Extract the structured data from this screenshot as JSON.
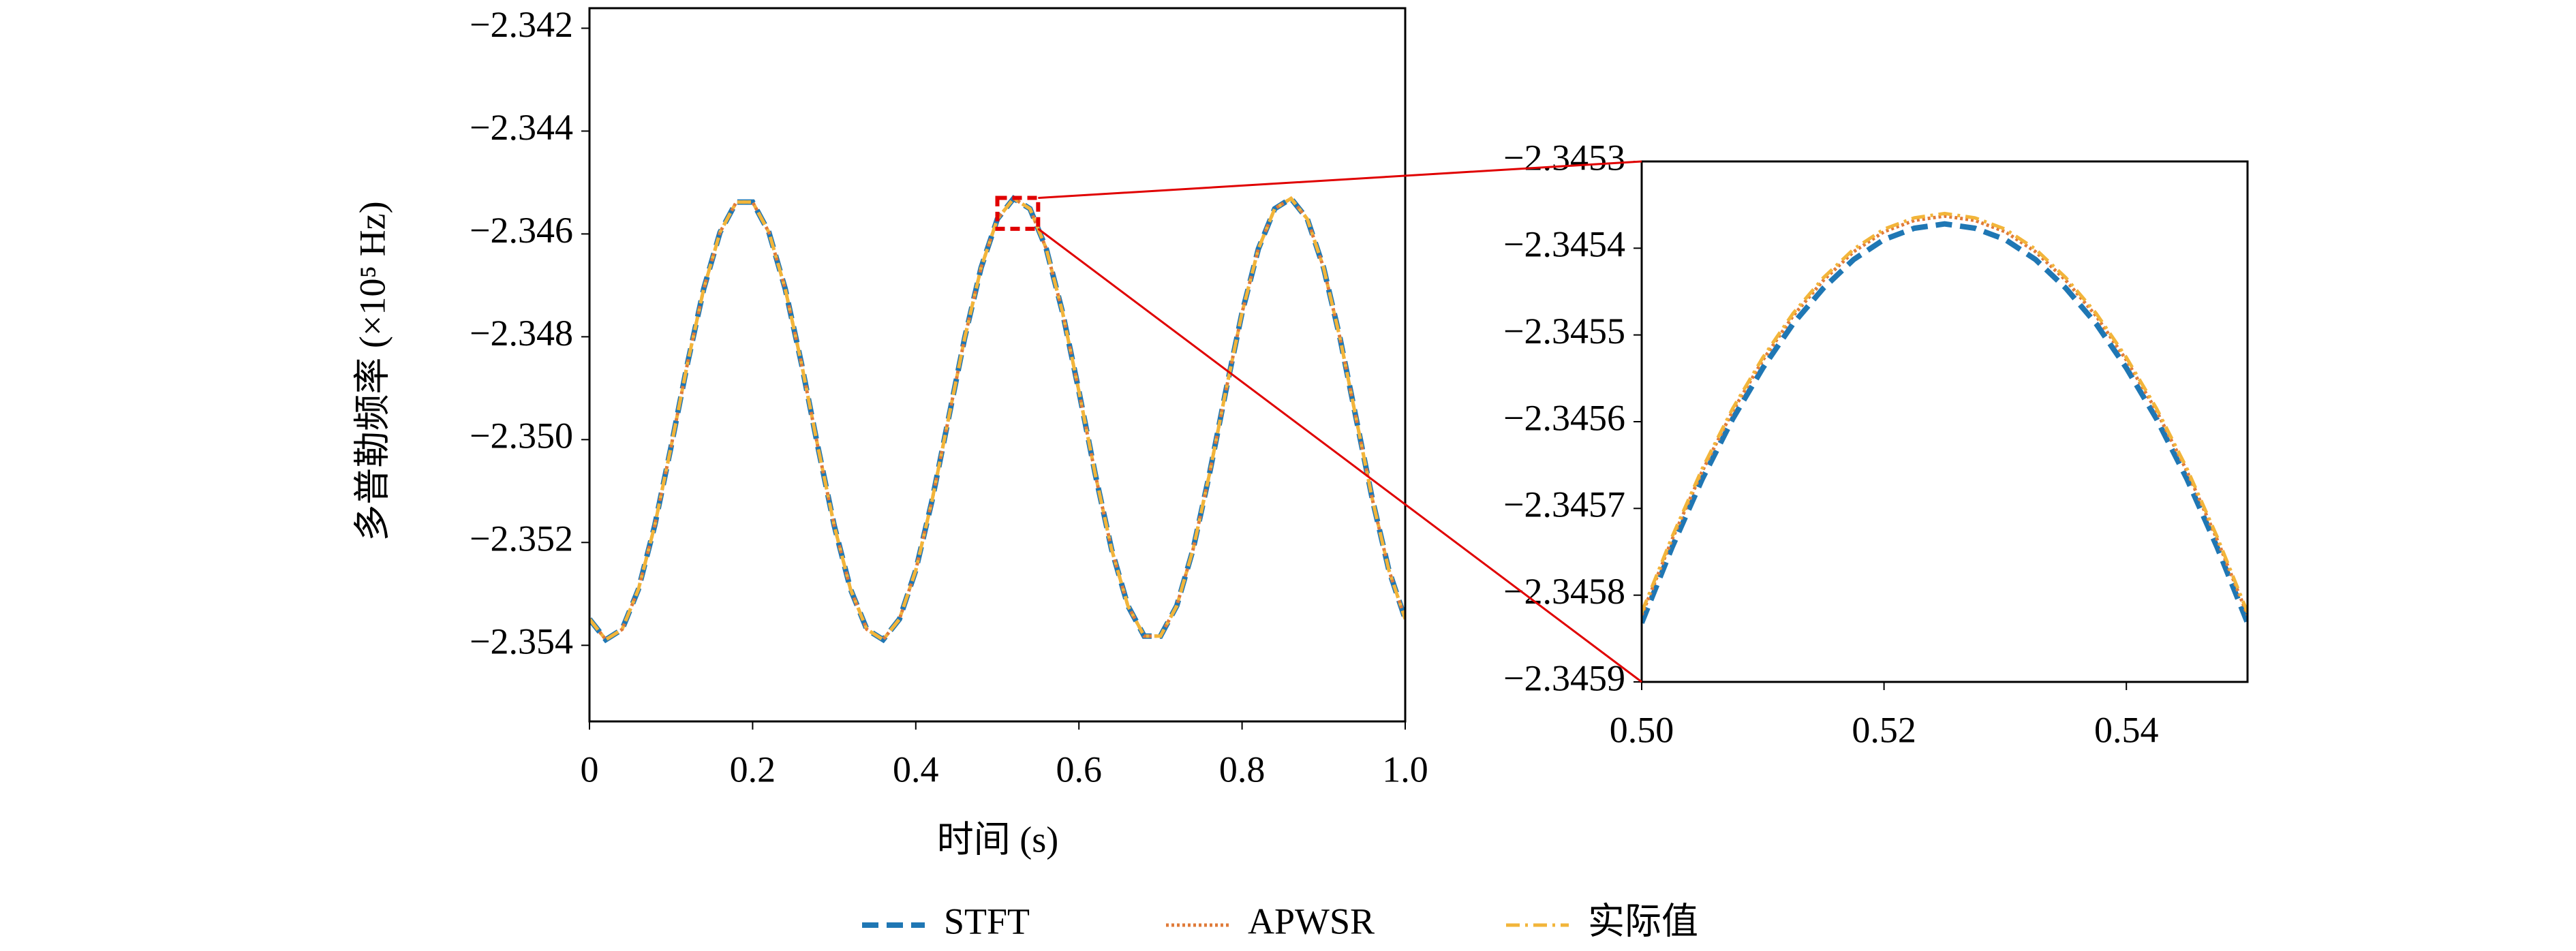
{
  "chart_data": [
    {
      "type": "line",
      "xlabel": "时间 (s)",
      "ylabel": "多普勒频率 (×10⁵ Hz)",
      "xlim": [
        0,
        1
      ],
      "ylim": [
        -2.35548,
        -2.34161
      ],
      "xticks": [
        0,
        0.2,
        0.4,
        0.6,
        0.8,
        {
          "value": 1,
          "label": "1.0"
        }
      ],
      "yticks": [
        {
          "value": -2.342,
          "label": "−2.342"
        },
        {
          "value": -2.344,
          "label": "−2.344"
        },
        {
          "value": -2.346,
          "label": "−2.346"
        },
        {
          "value": -2.348,
          "label": "−2.348"
        },
        {
          "value": -2.35,
          "label": "−2.350"
        },
        {
          "value": -2.352,
          "label": "−2.352"
        },
        {
          "value": -2.354,
          "label": "−2.354"
        }
      ],
      "x": [
        0,
        0.02,
        0.04,
        0.06,
        0.08,
        0.1,
        0.12,
        0.14,
        0.16,
        0.18,
        0.2,
        0.22,
        0.24,
        0.26,
        0.28,
        0.3,
        0.32,
        0.34,
        0.36,
        0.38,
        0.4,
        0.42,
        0.44,
        0.46,
        0.48,
        0.5,
        0.52,
        0.54,
        0.56,
        0.58,
        0.6,
        0.62,
        0.64,
        0.66,
        0.68,
        0.7,
        0.72,
        0.74,
        0.76,
        0.78,
        0.8,
        0.82,
        0.84,
        0.86,
        0.88,
        0.9,
        0.92,
        0.94,
        0.96,
        0.98,
        1
      ],
      "series": [
        {
          "name": "STFT",
          "color": "#1f77b4",
          "values": [
            -2.35349,
            -2.35389,
            -2.35369,
            -2.35291,
            -2.35167,
            -2.35014,
            -2.34853,
            -2.34707,
            -2.34597,
            -2.34538,
            -2.34538,
            -2.34597,
            -2.34707,
            -2.34853,
            -2.35014,
            -2.35167,
            -2.35291,
            -2.35369,
            -2.35389,
            -2.35349,
            -2.35254,
            -2.35118,
            -2.3496,
            -2.34802,
            -2.34666,
            -2.34571,
            -2.34531,
            -2.34551,
            -2.34629,
            -2.34753,
            -2.34906,
            -2.35067,
            -2.35213,
            -2.35323,
            -2.35382,
            -2.35382,
            -2.35323,
            -2.35213,
            -2.35067,
            -2.34906,
            -2.34753,
            -2.34629,
            -2.34551,
            -2.34531,
            -2.34571,
            -2.34666,
            -2.34802,
            -2.3496,
            -2.35118,
            -2.35254,
            -2.35349
          ]
        },
        {
          "name": "APWSR",
          "color": "#e07b39",
          "values": [
            -2.35349,
            -2.35389,
            -2.35369,
            -2.35291,
            -2.35167,
            -2.35014,
            -2.34853,
            -2.34707,
            -2.34597,
            -2.34538,
            -2.34538,
            -2.34597,
            -2.34707,
            -2.34853,
            -2.35014,
            -2.35167,
            -2.35291,
            -2.35369,
            -2.35389,
            -2.35349,
            -2.35254,
            -2.35118,
            -2.3496,
            -2.34802,
            -2.34666,
            -2.34571,
            -2.34531,
            -2.34551,
            -2.34629,
            -2.34753,
            -2.34906,
            -2.35067,
            -2.35213,
            -2.35323,
            -2.35382,
            -2.35382,
            -2.35323,
            -2.35213,
            -2.35067,
            -2.34906,
            -2.34753,
            -2.34629,
            -2.34551,
            -2.34531,
            -2.34571,
            -2.34666,
            -2.34802,
            -2.3496,
            -2.35118,
            -2.35254,
            -2.35349
          ]
        },
        {
          "name": "实际值",
          "color": "#f2b53a",
          "values": [
            -2.35349,
            -2.35389,
            -2.35369,
            -2.35291,
            -2.35167,
            -2.35014,
            -2.34853,
            -2.34707,
            -2.34597,
            -2.34538,
            -2.34538,
            -2.34597,
            -2.34707,
            -2.34853,
            -2.35014,
            -2.35167,
            -2.35291,
            -2.35369,
            -2.35389,
            -2.35349,
            -2.35254,
            -2.35118,
            -2.3496,
            -2.34802,
            -2.34666,
            -2.34571,
            -2.34531,
            -2.34551,
            -2.34629,
            -2.34753,
            -2.34906,
            -2.35067,
            -2.35213,
            -2.35323,
            -2.35382,
            -2.35382,
            -2.35323,
            -2.35213,
            -2.35067,
            -2.34906,
            -2.34753,
            -2.34629,
            -2.34551,
            -2.34531,
            -2.34571,
            -2.34666,
            -2.34802,
            -2.3496,
            -2.35118,
            -2.35254,
            -2.35349
          ]
        }
      ]
    },
    {
      "type": "line",
      "xlim": [
        0.5,
        0.55
      ],
      "ylim": [
        -2.3459,
        -2.3453
      ],
      "xticks": [
        {
          "value": 0.5,
          "label": "0.50"
        },
        0.52,
        0.54
      ],
      "yticks": [
        {
          "value": -2.3453,
          "label": "−2.3453"
        },
        {
          "value": -2.3454,
          "label": "−2.3454"
        },
        {
          "value": -2.3455,
          "label": "−2.3455"
        },
        {
          "value": -2.3456,
          "label": "−2.3456"
        },
        {
          "value": -2.3457,
          "label": "−2.3457"
        },
        {
          "value": -2.3458,
          "label": "−2.3458"
        },
        {
          "value": -2.3459,
          "label": "−2.3459"
        }
      ],
      "x": [
        0.5,
        0.5025,
        0.505,
        0.5075,
        0.51,
        0.5125,
        0.515,
        0.5175,
        0.52,
        0.5225,
        0.525,
        0.5275,
        0.53,
        0.5325,
        0.535,
        0.5375,
        0.54,
        0.5425,
        0.545,
        0.5475,
        0.55
      ],
      "series": [
        {
          "name": "STFT",
          "color": "#1f77b4",
          "values": [
            -2.345832,
            -2.345745,
            -2.345666,
            -2.345597,
            -2.345538,
            -2.345487,
            -2.345446,
            -2.345413,
            -2.34539,
            -2.345377,
            -2.345372,
            -2.345377,
            -2.34539,
            -2.345413,
            -2.345446,
            -2.345487,
            -2.345538,
            -2.345597,
            -2.345666,
            -2.345745,
            -2.345832
          ]
        },
        {
          "name": "APWSR",
          "color": "#e07b39",
          "values": [
            -2.345823,
            -2.345736,
            -2.345657,
            -2.345588,
            -2.345529,
            -2.345478,
            -2.345437,
            -2.345404,
            -2.345381,
            -2.345368,
            -2.345363,
            -2.345368,
            -2.345381,
            -2.345404,
            -2.345437,
            -2.345478,
            -2.345529,
            -2.345588,
            -2.345657,
            -2.345736,
            -2.345823
          ]
        },
        {
          "name": "实际值",
          "color": "#f2b53a",
          "values": [
            -2.34582,
            -2.345733,
            -2.345654,
            -2.345585,
            -2.345526,
            -2.345475,
            -2.345434,
            -2.345401,
            -2.345378,
            -2.345365,
            -2.34536,
            -2.345365,
            -2.345378,
            -2.345401,
            -2.345434,
            -2.345475,
            -2.345526,
            -2.345585,
            -2.345654,
            -2.345733,
            -2.34582
          ]
        }
      ]
    }
  ]
}
